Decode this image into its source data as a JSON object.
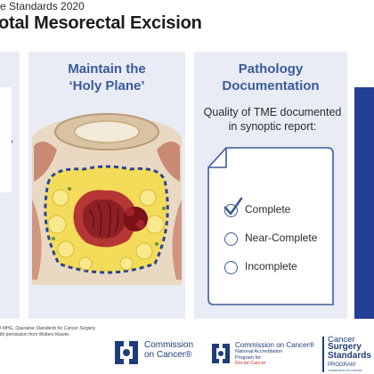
{
  "header": {
    "top_line": "e Standards 2020",
    "title": "otal Mesorectal Excision"
  },
  "left_panel": {
    "fragment": ","
  },
  "middle_panel": {
    "heading_line1": "Maintain the",
    "heading_line2": "‘Holy Plane’"
  },
  "right_panel": {
    "heading_line1": "Pathology",
    "heading_line2": "Documentation",
    "text_line1": "Quality of TME documented",
    "text_line2": "in synoptic report:",
    "options": [
      {
        "label": "Complete",
        "checked": true
      },
      {
        "label": "Near-Complete",
        "checked": false
      },
      {
        "label": "Incomplete",
        "checked": false
      }
    ]
  },
  "credit": {
    "line1_a": "t MHG, ",
    "line1_b": "Operative Standards for Cancer Surgery,",
    "line2": "ith permission from Wolters Kluwer."
  },
  "logos": {
    "coc": {
      "line1": "Commission",
      "line2": "on Cancer®"
    },
    "napc": {
      "line1": "Commission on Cancer®",
      "line2": "National Accreditation",
      "line3": "Program for",
      "line4": "Rectal Cancer"
    },
    "cssp": {
      "line1": "Cancer",
      "line2": "Surgery",
      "line3": "Standards",
      "line4": "PROGRAM",
      "line5": "COMMISSION ON CANCER"
    }
  },
  "colors": {
    "panel_bg": "#e9ecf4",
    "heading_blue": "#3a5b9c",
    "navy": "#1f3c7a",
    "strip_blue": "#263f96",
    "accent_red": "#c0392b"
  }
}
